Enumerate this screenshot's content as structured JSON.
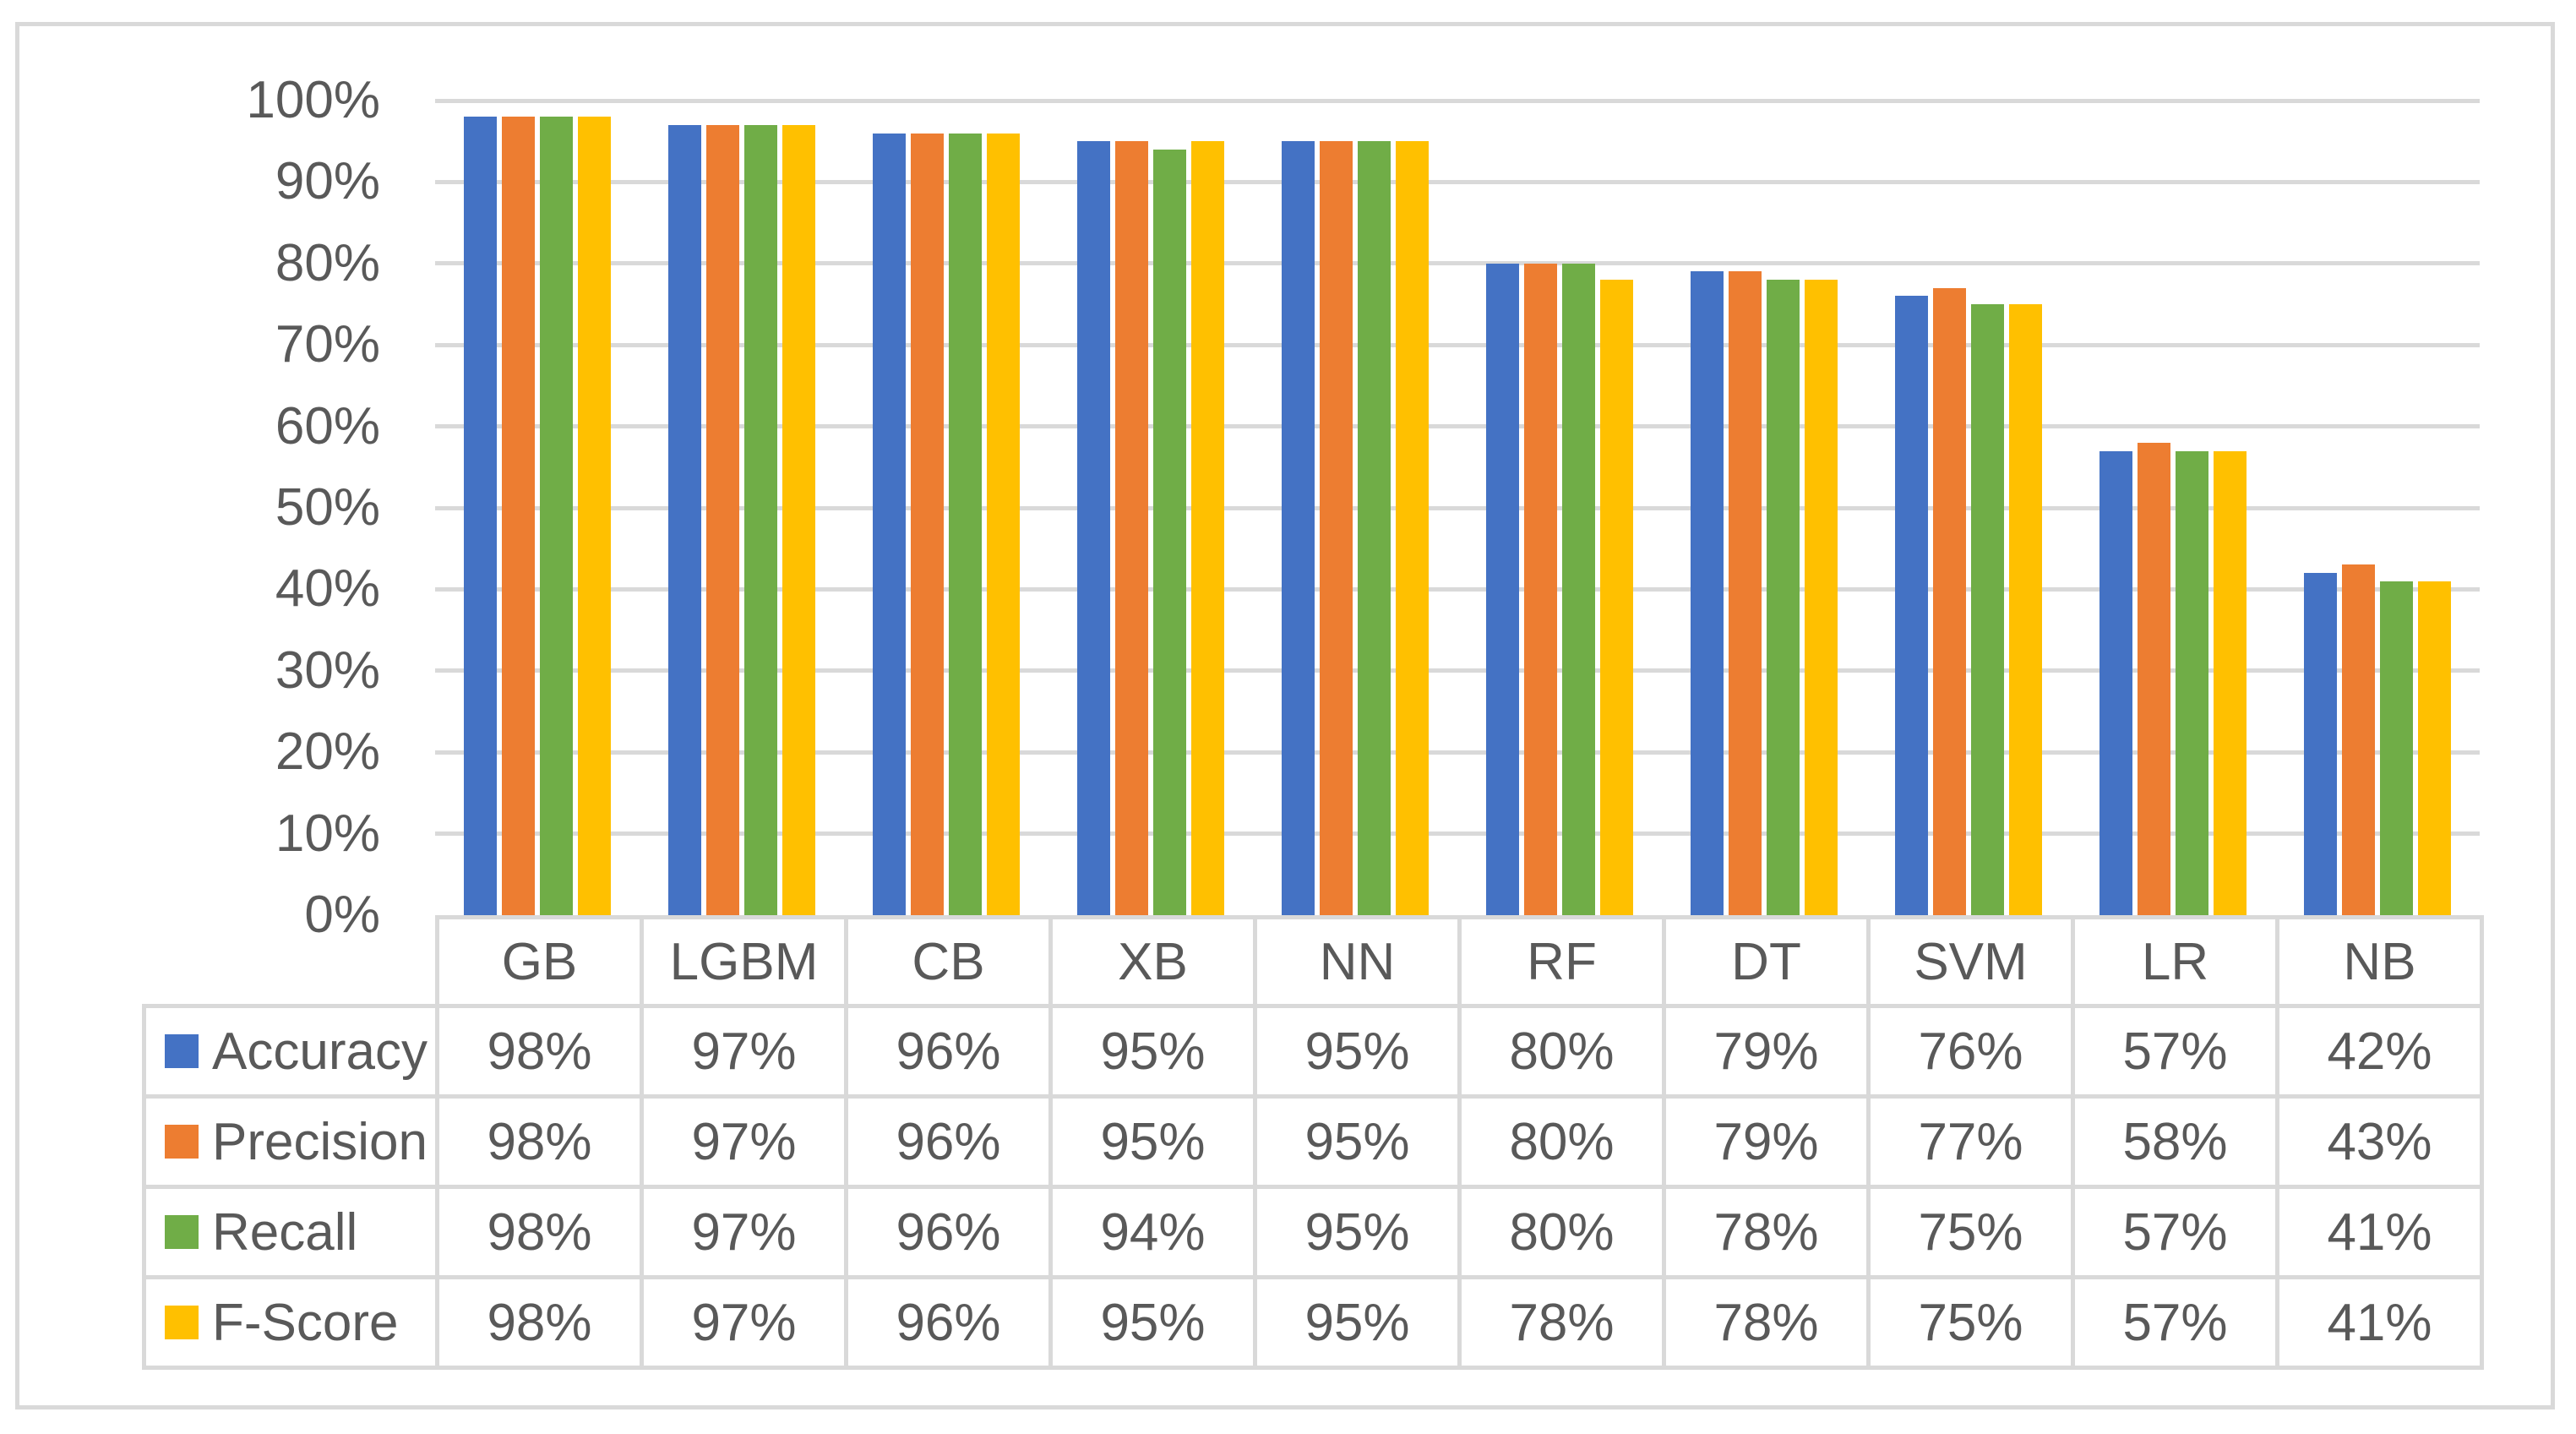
{
  "figure": {
    "title": "",
    "background": "#FFFFFF",
    "frame_color": "#D9D9D9",
    "gridline_color": "#D9D9D9",
    "text_color": "#595959"
  },
  "chart_data": {
    "type": "bar",
    "title": "",
    "xlabel": "",
    "ylabel": "",
    "ylim": [
      0,
      100
    ],
    "grid": true,
    "legend_position": "data-table-left-column",
    "shows_data_table": true,
    "y_ticks": [
      "0%",
      "10%",
      "20%",
      "30%",
      "40%",
      "50%",
      "60%",
      "70%",
      "80%",
      "90%",
      "100%"
    ],
    "categories": [
      "GB",
      "LGBM",
      "CB",
      "XB",
      "NN",
      "RF",
      "DT",
      "SVM",
      "LR",
      "NB"
    ],
    "series": [
      {
        "name": "Accuracy",
        "color": "#4472C4",
        "values": [
          98,
          97,
          96,
          95,
          95,
          80,
          79,
          76,
          57,
          42
        ],
        "cells": [
          "98%",
          "97%",
          "96%",
          "95%",
          "95%",
          "80%",
          "79%",
          "76%",
          "57%",
          "42%"
        ]
      },
      {
        "name": "Precision",
        "color": "#ED7D31",
        "values": [
          98,
          97,
          96,
          95,
          95,
          80,
          79,
          77,
          58,
          43
        ],
        "cells": [
          "98%",
          "97%",
          "96%",
          "95%",
          "95%",
          "80%",
          "79%",
          "77%",
          "58%",
          "43%"
        ]
      },
      {
        "name": "Recall",
        "color": "#70AD47",
        "values": [
          98,
          97,
          96,
          94,
          95,
          80,
          78,
          75,
          57,
          41
        ],
        "cells": [
          "98%",
          "97%",
          "96%",
          "94%",
          "95%",
          "80%",
          "78%",
          "75%",
          "57%",
          "41%"
        ]
      },
      {
        "name": "F-Score",
        "color": "#FFC000",
        "values": [
          98,
          97,
          96,
          95,
          95,
          78,
          78,
          75,
          57,
          41
        ],
        "cells": [
          "98%",
          "97%",
          "96%",
          "95%",
          "95%",
          "78%",
          "78%",
          "75%",
          "57%",
          "41%"
        ]
      }
    ]
  }
}
